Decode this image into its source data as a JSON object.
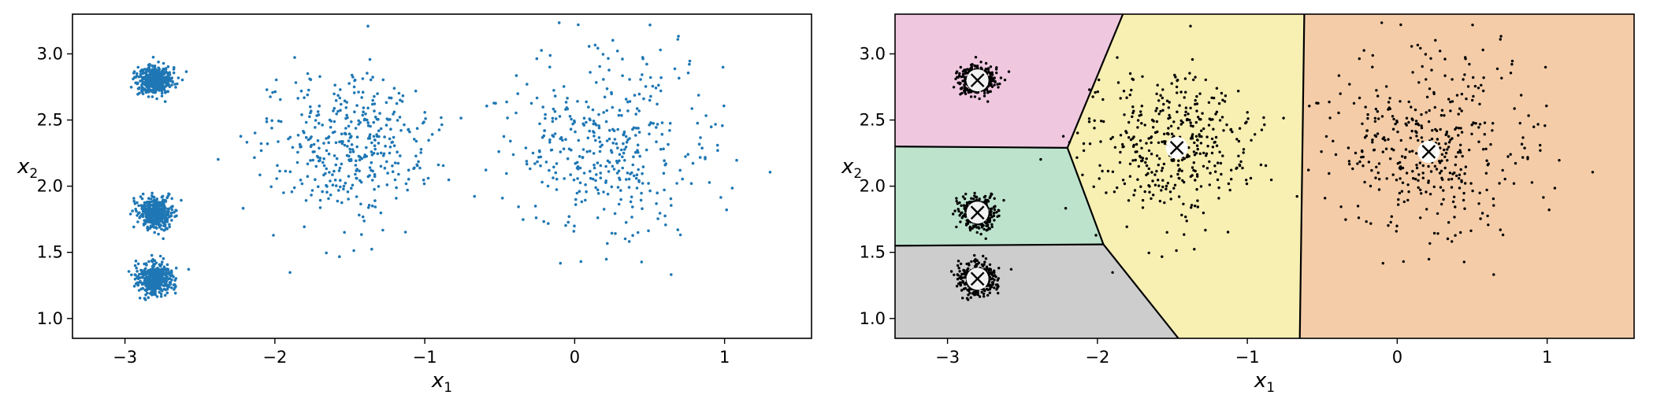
{
  "chart_data": [
    {
      "type": "scatter",
      "title": "",
      "xlabel": "x",
      "xlabel_subscript": "1",
      "ylabel": "x",
      "ylabel_subscript": "2",
      "xlim": [
        -3.35,
        1.58
      ],
      "ylim": [
        0.85,
        3.3
      ],
      "xticks": [
        -3,
        -2,
        -1,
        0,
        1
      ],
      "xtick_labels": [
        "−3",
        "−2",
        "−1",
        "0",
        "1"
      ],
      "yticks": [
        1.0,
        1.5,
        2.0,
        2.5,
        3.0
      ],
      "ytick_labels": [
        "1.0",
        "1.5",
        "2.0",
        "2.5",
        "3.0"
      ],
      "grid": false,
      "legend": "none",
      "point_color": "#1f77b4",
      "series": [
        {
          "center": [
            -2.8,
            2.8
          ],
          "std": 0.06,
          "count": 400
        },
        {
          "center": [
            -2.8,
            1.8
          ],
          "std": 0.06,
          "count": 400
        },
        {
          "center": [
            -2.8,
            1.3
          ],
          "std": 0.06,
          "count": 400
        },
        {
          "center": [
            -1.5,
            2.3
          ],
          "std": 0.28,
          "count": 400
        },
        {
          "center": [
            0.2,
            2.3
          ],
          "std": 0.35,
          "count": 400
        }
      ]
    },
    {
      "type": "scatter",
      "title": "",
      "xlabel": "x",
      "xlabel_subscript": "1",
      "ylabel": "x",
      "ylabel_subscript": "2",
      "xlim": [
        -3.35,
        1.58
      ],
      "ylim": [
        0.85,
        3.3
      ],
      "xticks": [
        -3,
        -2,
        -1,
        0,
        1
      ],
      "xtick_labels": [
        "−3",
        "−2",
        "−1",
        "0",
        "1"
      ],
      "yticks": [
        1.0,
        1.5,
        2.0,
        2.5,
        3.0
      ],
      "ytick_labels": [
        "1.0",
        "1.5",
        "2.0",
        "2.5",
        "3.0"
      ],
      "grid": false,
      "legend": "none",
      "point_color": "#000000",
      "centroids": [
        [
          -2.8,
          2.8
        ],
        [
          -2.8,
          1.8
        ],
        [
          -2.8,
          1.3
        ],
        [
          -1.47,
          2.29
        ],
        [
          0.21,
          2.26
        ]
      ],
      "regions": [
        {
          "color": "#efc8e0",
          "polygon": [
            [
              -3.35,
              3.3
            ],
            [
              -1.83,
              3.3
            ],
            [
              -2.2,
              2.29
            ],
            [
              -3.35,
              2.3
            ]
          ]
        },
        {
          "color": "#bde3cd",
          "polygon": [
            [
              -3.35,
              2.3
            ],
            [
              -2.2,
              2.29
            ],
            [
              -1.96,
              1.56
            ],
            [
              -3.35,
              1.55
            ]
          ]
        },
        {
          "color": "#cdcdcd",
          "polygon": [
            [
              -3.35,
              1.55
            ],
            [
              -1.96,
              1.56
            ],
            [
              -1.46,
              0.85
            ],
            [
              -3.35,
              0.85
            ]
          ]
        },
        {
          "color": "#f8efb3",
          "polygon": [
            [
              -1.83,
              3.3
            ],
            [
              -0.62,
              3.3
            ],
            [
              -0.65,
              0.85
            ],
            [
              -1.46,
              0.85
            ],
            [
              -1.96,
              1.56
            ],
            [
              -2.2,
              2.29
            ]
          ]
        },
        {
          "color": "#f4cda8",
          "polygon": [
            [
              -0.62,
              3.3
            ],
            [
              1.58,
              3.3
            ],
            [
              1.58,
              0.85
            ],
            [
              -0.65,
              0.85
            ]
          ]
        }
      ],
      "boundaries": [
        [
          [
            -1.83,
            3.3
          ],
          [
            -2.2,
            2.29
          ]
        ],
        [
          [
            -3.35,
            2.3
          ],
          [
            -2.2,
            2.29
          ]
        ],
        [
          [
            -2.2,
            2.29
          ],
          [
            -1.96,
            1.56
          ]
        ],
        [
          [
            -3.35,
            1.55
          ],
          [
            -1.96,
            1.56
          ]
        ],
        [
          [
            -1.96,
            1.56
          ],
          [
            -1.46,
            0.85
          ]
        ],
        [
          [
            -0.62,
            3.3
          ],
          [
            -0.65,
            0.85
          ]
        ]
      ],
      "series": [
        {
          "center": [
            -2.8,
            2.8
          ],
          "std": 0.06,
          "count": 400
        },
        {
          "center": [
            -2.8,
            1.8
          ],
          "std": 0.06,
          "count": 400
        },
        {
          "center": [
            -2.8,
            1.3
          ],
          "std": 0.06,
          "count": 400
        },
        {
          "center": [
            -1.5,
            2.3
          ],
          "std": 0.28,
          "count": 400
        },
        {
          "center": [
            0.2,
            2.3
          ],
          "std": 0.35,
          "count": 400
        }
      ]
    }
  ]
}
